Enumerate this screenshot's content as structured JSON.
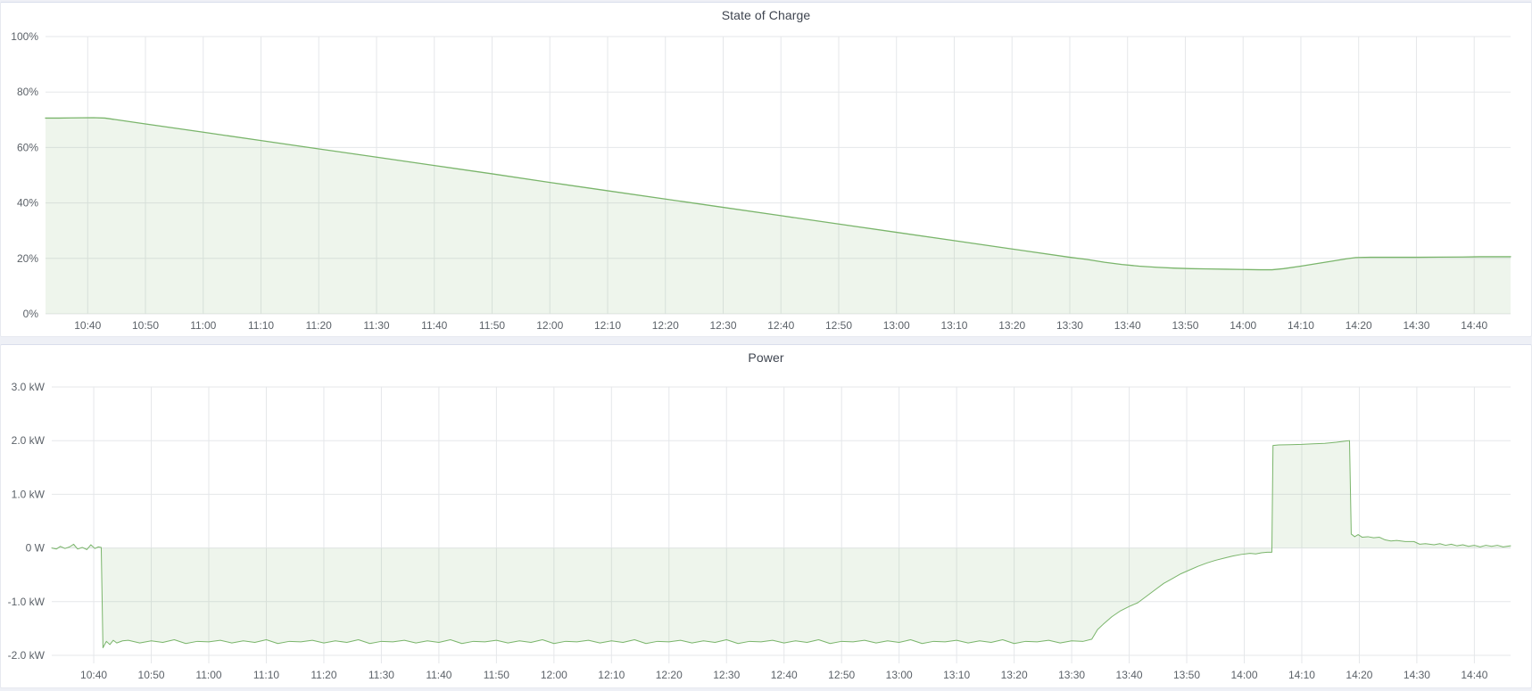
{
  "page": {
    "background_color": "#eef0f6",
    "panel_background": "#ffffff",
    "accent_green": "#7ab56b",
    "grid_color": "#e5e7ea",
    "text_color": "#5c6269",
    "title_color": "#3f4550"
  },
  "chart_data": [
    {
      "type": "area",
      "title": "State of Charge",
      "xlabel": "",
      "ylabel": "",
      "legend": "none",
      "grid": "on",
      "line_color": "#7ab56b",
      "fill_color": "#7ab56b",
      "fill_opacity": 0.13,
      "x_axis": {
        "unit": "time",
        "range_minutes_after_1000": [
          32.7,
          286.3
        ],
        "tick_minutes": [
          40,
          50,
          60,
          70,
          80,
          90,
          100,
          110,
          120,
          130,
          140,
          150,
          160,
          170,
          180,
          190,
          200,
          210,
          220,
          230,
          240,
          250,
          260,
          270,
          280
        ],
        "tick_labels": [
          "10:40",
          "10:50",
          "11:00",
          "11:10",
          "11:20",
          "11:30",
          "11:40",
          "11:50",
          "12:00",
          "12:10",
          "12:20",
          "12:30",
          "12:40",
          "12:50",
          "13:00",
          "13:10",
          "13:20",
          "13:30",
          "13:40",
          "13:50",
          "14:00",
          "14:10",
          "14:20",
          "14:30",
          "14:40"
        ]
      },
      "y_axis": {
        "range": [
          0,
          100
        ],
        "ticks": [
          {
            "value": 0,
            "label": "0%"
          },
          {
            "value": 20,
            "label": "20%"
          },
          {
            "value": 40,
            "label": "40%"
          },
          {
            "value": 60,
            "label": "60%"
          },
          {
            "value": 80,
            "label": "80%"
          },
          {
            "value": 100,
            "label": "100%"
          }
        ]
      },
      "series": [
        {
          "name": "State of Charge",
          "points": [
            [
              32.7,
              70.6
            ],
            [
              35,
              70.6
            ],
            [
              37,
              70.65
            ],
            [
              39,
              70.7
            ],
            [
              41,
              70.75
            ],
            [
              43,
              70.6
            ],
            [
              50,
              68.5
            ],
            [
              60,
              65.5
            ],
            [
              70,
              62.5
            ],
            [
              80,
              59.5
            ],
            [
              90,
              56.5
            ],
            [
              100,
              53.5
            ],
            [
              110,
              50.5
            ],
            [
              120,
              47.4
            ],
            [
              130,
              44.4
            ],
            [
              140,
              41.4
            ],
            [
              150,
              38.4
            ],
            [
              160,
              35.4
            ],
            [
              170,
              32.4
            ],
            [
              180,
              29.4
            ],
            [
              190,
              26.4
            ],
            [
              200,
              23.4
            ],
            [
              210,
              20.4
            ],
            [
              213,
              19.6
            ],
            [
              216,
              18.6
            ],
            [
              219,
              17.8
            ],
            [
              222,
              17.2
            ],
            [
              225,
              16.8
            ],
            [
              228,
              16.5
            ],
            [
              231,
              16.3
            ],
            [
              234,
              16.2
            ],
            [
              237,
              16.1
            ],
            [
              240,
              16.0
            ],
            [
              243,
              15.9
            ],
            [
              245,
              15.9
            ],
            [
              247,
              16.3
            ],
            [
              250,
              17.2
            ],
            [
              253,
              18.2
            ],
            [
              256,
              19.2
            ],
            [
              258,
              19.9
            ],
            [
              259.5,
              20.3
            ],
            [
              262,
              20.4
            ],
            [
              266,
              20.4
            ],
            [
              270,
              20.4
            ],
            [
              274,
              20.45
            ],
            [
              278,
              20.5
            ],
            [
              281,
              20.6
            ],
            [
              286.3,
              20.6
            ]
          ]
        }
      ]
    },
    {
      "type": "area",
      "title": "Power",
      "xlabel": "",
      "ylabel": "",
      "legend": "none",
      "grid": "on",
      "line_color": "#7ab56b",
      "fill_color": "#7ab56b",
      "fill_opacity": 0.13,
      "x_axis": {
        "unit": "time",
        "range_minutes_after_1000": [
          32.7,
          286.3
        ],
        "tick_minutes": [
          40,
          50,
          60,
          70,
          80,
          90,
          100,
          110,
          120,
          130,
          140,
          150,
          160,
          170,
          180,
          190,
          200,
          210,
          220,
          230,
          240,
          250,
          260,
          270,
          280
        ],
        "tick_labels": [
          "10:40",
          "10:50",
          "11:00",
          "11:10",
          "11:20",
          "11:30",
          "11:40",
          "11:50",
          "12:00",
          "12:10",
          "12:20",
          "12:30",
          "12:40",
          "12:50",
          "13:00",
          "13:10",
          "13:20",
          "13:30",
          "13:40",
          "13:50",
          "14:00",
          "14:10",
          "14:20",
          "14:30",
          "14:40"
        ]
      },
      "y_axis": {
        "range": [
          -2.15,
          3.0
        ],
        "ticks": [
          {
            "value": -2.0,
            "label": "-2.0 kW"
          },
          {
            "value": -1.0,
            "label": "-1.0 kW"
          },
          {
            "value": 0,
            "label": "0 W"
          },
          {
            "value": 1.0,
            "label": "1.0 kW"
          },
          {
            "value": 2.0,
            "label": "2.0 kW"
          },
          {
            "value": 3.0,
            "label": "3.0 kW"
          }
        ]
      },
      "series": [
        {
          "name": "Power",
          "points": [
            [
              32.7,
              0.0
            ],
            [
              33.5,
              -0.02
            ],
            [
              34.2,
              0.03
            ],
            [
              35,
              -0.01
            ],
            [
              35.8,
              0.02
            ],
            [
              36.5,
              0.07
            ],
            [
              37.2,
              -0.02
            ],
            [
              38,
              0.01
            ],
            [
              38.8,
              -0.03
            ],
            [
              39.5,
              0.06
            ],
            [
              40.2,
              -0.01
            ],
            [
              40.8,
              0.02
            ],
            [
              41.3,
              0.01
            ],
            [
              41.6,
              -1.86
            ],
            [
              42.2,
              -1.74
            ],
            [
              42.8,
              -1.8
            ],
            [
              43.4,
              -1.72
            ],
            [
              44,
              -1.77
            ],
            [
              45,
              -1.73
            ],
            [
              46,
              -1.72
            ],
            [
              48,
              -1.77
            ],
            [
              50,
              -1.73
            ],
            [
              52,
              -1.76
            ],
            [
              54,
              -1.71
            ],
            [
              56,
              -1.78
            ],
            [
              58,
              -1.74
            ],
            [
              60,
              -1.75
            ],
            [
              62,
              -1.72
            ],
            [
              64,
              -1.77
            ],
            [
              66,
              -1.73
            ],
            [
              68,
              -1.76
            ],
            [
              70,
              -1.71
            ],
            [
              72,
              -1.78
            ],
            [
              74,
              -1.74
            ],
            [
              76,
              -1.75
            ],
            [
              78,
              -1.72
            ],
            [
              80,
              -1.77
            ],
            [
              82,
              -1.73
            ],
            [
              84,
              -1.76
            ],
            [
              86,
              -1.71
            ],
            [
              88,
              -1.78
            ],
            [
              90,
              -1.74
            ],
            [
              92,
              -1.75
            ],
            [
              94,
              -1.72
            ],
            [
              96,
              -1.77
            ],
            [
              98,
              -1.73
            ],
            [
              100,
              -1.76
            ],
            [
              102,
              -1.71
            ],
            [
              104,
              -1.78
            ],
            [
              106,
              -1.74
            ],
            [
              108,
              -1.75
            ],
            [
              110,
              -1.72
            ],
            [
              112,
              -1.77
            ],
            [
              114,
              -1.73
            ],
            [
              116,
              -1.76
            ],
            [
              118,
              -1.71
            ],
            [
              120,
              -1.78
            ],
            [
              122,
              -1.74
            ],
            [
              124,
              -1.75
            ],
            [
              126,
              -1.72
            ],
            [
              128,
              -1.77
            ],
            [
              130,
              -1.73
            ],
            [
              132,
              -1.76
            ],
            [
              134,
              -1.71
            ],
            [
              136,
              -1.78
            ],
            [
              138,
              -1.74
            ],
            [
              140,
              -1.75
            ],
            [
              142,
              -1.72
            ],
            [
              144,
              -1.77
            ],
            [
              146,
              -1.73
            ],
            [
              148,
              -1.76
            ],
            [
              150,
              -1.71
            ],
            [
              152,
              -1.78
            ],
            [
              154,
              -1.74
            ],
            [
              156,
              -1.75
            ],
            [
              158,
              -1.72
            ],
            [
              160,
              -1.77
            ],
            [
              162,
              -1.73
            ],
            [
              164,
              -1.76
            ],
            [
              166,
              -1.71
            ],
            [
              168,
              -1.78
            ],
            [
              170,
              -1.74
            ],
            [
              172,
              -1.75
            ],
            [
              174,
              -1.72
            ],
            [
              176,
              -1.77
            ],
            [
              178,
              -1.73
            ],
            [
              180,
              -1.76
            ],
            [
              182,
              -1.71
            ],
            [
              184,
              -1.78
            ],
            [
              186,
              -1.74
            ],
            [
              188,
              -1.75
            ],
            [
              190,
              -1.72
            ],
            [
              192,
              -1.77
            ],
            [
              194,
              -1.73
            ],
            [
              196,
              -1.76
            ],
            [
              198,
              -1.71
            ],
            [
              200,
              -1.78
            ],
            [
              202,
              -1.74
            ],
            [
              204,
              -1.75
            ],
            [
              206,
              -1.72
            ],
            [
              208,
              -1.77
            ],
            [
              210,
              -1.73
            ],
            [
              212,
              -1.74
            ],
            [
              213.5,
              -1.7
            ],
            [
              214.5,
              -1.52
            ],
            [
              215.5,
              -1.42
            ],
            [
              217,
              -1.28
            ],
            [
              218.5,
              -1.17
            ],
            [
              220,
              -1.09
            ],
            [
              221.5,
              -1.02
            ],
            [
              223,
              -0.9
            ],
            [
              224.5,
              -0.78
            ],
            [
              226,
              -0.66
            ],
            [
              227.5,
              -0.57
            ],
            [
              229,
              -0.48
            ],
            [
              230.5,
              -0.41
            ],
            [
              232,
              -0.34
            ],
            [
              233.5,
              -0.28
            ],
            [
              235,
              -0.23
            ],
            [
              236.5,
              -0.19
            ],
            [
              238,
              -0.15
            ],
            [
              239.5,
              -0.12
            ],
            [
              241,
              -0.1
            ],
            [
              242,
              -0.11
            ],
            [
              243,
              -0.09
            ],
            [
              244,
              -0.08
            ],
            [
              244.8,
              -0.08
            ],
            [
              245,
              1.91
            ],
            [
              246,
              1.92
            ],
            [
              248,
              1.925
            ],
            [
              250,
              1.93
            ],
            [
              252,
              1.94
            ],
            [
              254,
              1.95
            ],
            [
              256,
              1.97
            ],
            [
              257.5,
              1.99
            ],
            [
              258.3,
              2.0
            ],
            [
              258.6,
              0.26
            ],
            [
              259.2,
              0.21
            ],
            [
              259.8,
              0.25
            ],
            [
              260.5,
              0.2
            ],
            [
              261.5,
              0.21
            ],
            [
              262.5,
              0.19
            ],
            [
              263.5,
              0.2
            ],
            [
              264.5,
              0.15
            ],
            [
              265.5,
              0.13
            ],
            [
              266.5,
              0.14
            ],
            [
              268,
              0.12
            ],
            [
              269.5,
              0.12
            ],
            [
              270.5,
              0.07
            ],
            [
              271.5,
              0.08
            ],
            [
              273,
              0.06
            ],
            [
              274,
              0.08
            ],
            [
              275,
              0.05
            ],
            [
              276,
              0.07
            ],
            [
              277,
              0.04
            ],
            [
              278,
              0.06
            ],
            [
              279,
              0.03
            ],
            [
              280,
              0.05
            ],
            [
              281,
              0.02
            ],
            [
              282,
              0.05
            ],
            [
              283,
              0.03
            ],
            [
              284,
              0.05
            ],
            [
              285,
              0.02
            ],
            [
              286.3,
              0.04
            ]
          ]
        }
      ]
    }
  ]
}
